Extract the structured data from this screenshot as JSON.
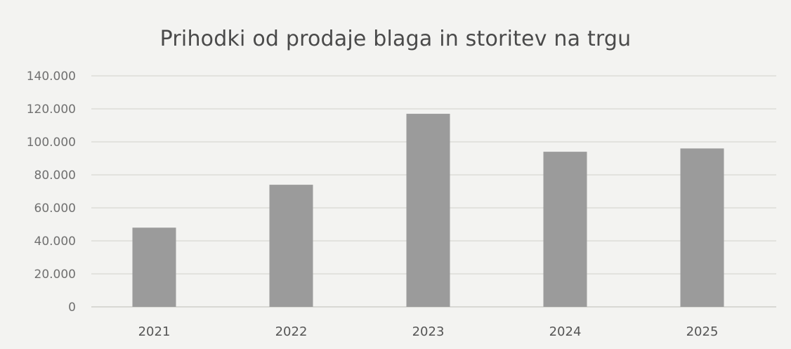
{
  "chart_data": {
    "type": "bar",
    "title": "Prihodki od prodaje blaga in storitev na trgu",
    "xlabel": "",
    "ylabel": "",
    "categories": [
      "2021",
      "2022",
      "2023",
      "2024",
      "2025"
    ],
    "values": [
      48000,
      74000,
      117000,
      94000,
      96000
    ],
    "ylim": [
      0,
      140000
    ],
    "y_ticks": [
      0,
      20000,
      40000,
      60000,
      80000,
      100000,
      120000,
      140000
    ],
    "y_tick_labels": [
      "0",
      "20.000",
      "40.000",
      "60.000",
      "80.000",
      "100.000",
      "120.000",
      "140.000"
    ],
    "grid": true,
    "legend": "none",
    "bar_color": "#9b9b9b"
  }
}
